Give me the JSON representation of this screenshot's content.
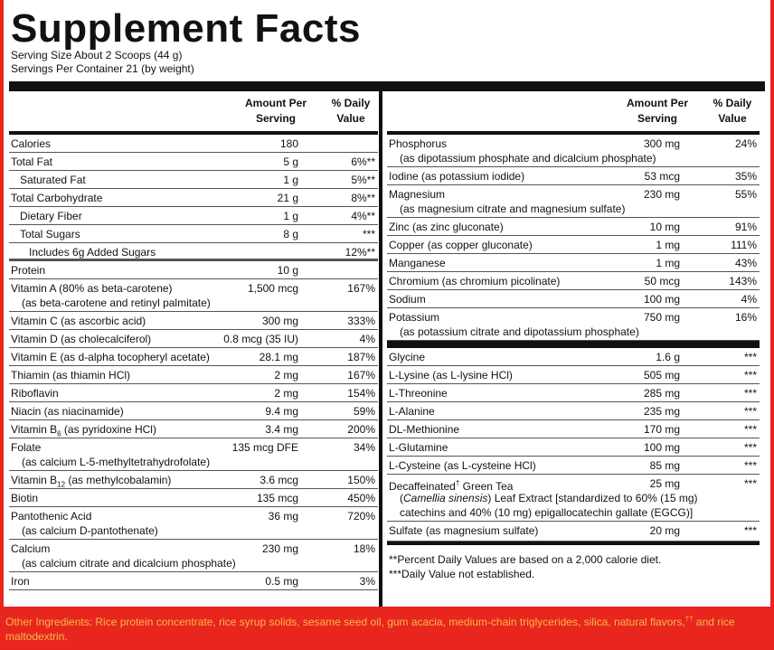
{
  "title": "Supplement Facts",
  "serving_size": "Serving Size About 2 Scoops (44 g)",
  "servings_per_container": "Servings Per Container 21 (by weight)",
  "header": {
    "amount_line1": "Amount Per",
    "amount_line2": "Serving",
    "dv_line1": "% Daily",
    "dv_line2": "Value"
  },
  "left_rows": [
    {
      "name": "Calories",
      "amount": "180",
      "dv": ""
    },
    {
      "name": "Total Fat",
      "amount": "5 g",
      "dv": "6%**"
    },
    {
      "name": "Saturated Fat",
      "amount": "1 g",
      "dv": "5%**"
    },
    {
      "name": "Total Carbohydrate",
      "amount": "21 g",
      "dv": "8%**"
    },
    {
      "name": "Dietary Fiber",
      "amount": "1 g",
      "dv": "4%**"
    },
    {
      "name": "Total Sugars",
      "amount": "8 g",
      "dv": "***"
    },
    {
      "name": "Includes 6g Added Sugars",
      "amount": "",
      "dv": "12%**"
    },
    {
      "name": "Protein",
      "amount": "10 g",
      "dv": ""
    },
    {
      "name": "Vitamin A (80% as beta-carotene)",
      "sub": "(as beta-carotene and retinyl palmitate)",
      "amount": "1,500 mcg",
      "dv": "167%"
    },
    {
      "name": "Vitamin C (as ascorbic acid)",
      "amount": "300 mg",
      "dv": "333%"
    },
    {
      "name": "Vitamin D (as cholecalciferol)",
      "amount": "0.8 mcg (35 IU)",
      "dv": "4%"
    },
    {
      "name": "Vitamin E (as d-alpha tocopheryl acetate)",
      "amount": "28.1 mg",
      "dv": "187%"
    },
    {
      "name": "Thiamin (as thiamin HCl)",
      "amount": "2 mg",
      "dv": "167%"
    },
    {
      "name": "Riboflavin",
      "amount": "2 mg",
      "dv": "154%"
    },
    {
      "name": "Niacin (as niacinamide)",
      "amount": "9.4 mg",
      "dv": "59%"
    },
    {
      "name_pre": "Vitamin B",
      "name_sub": "6",
      "name_post": " (as pyridoxine HCl)",
      "amount": "3.4 mg",
      "dv": "200%"
    },
    {
      "name": "Folate",
      "sub": "(as calcium L-5-methyltetrahydrofolate)",
      "amount": "135 mcg DFE",
      "dv": "34%"
    },
    {
      "name_pre": "Vitamin B",
      "name_sub": "12",
      "name_post": " (as methylcobalamin)",
      "amount": "3.6 mcg",
      "dv": "150%"
    },
    {
      "name": "Biotin",
      "amount": "135 mcg",
      "dv": "450%"
    },
    {
      "name": "Pantothenic Acid",
      "sub": "(as calcium D-pantothenate)",
      "amount": "36 mg",
      "dv": "720%"
    },
    {
      "name": "Calcium",
      "sub": "(as calcium citrate and dicalcium phosphate)",
      "amount": "230 mg",
      "dv": "18%"
    },
    {
      "name": "Iron",
      "amount": "0.5 mg",
      "dv": "3%"
    }
  ],
  "right_rows": [
    {
      "name": "Phosphorus",
      "sub": "(as dipotassium phosphate and dicalcium phosphate)",
      "amount": "300 mg",
      "dv": "24%"
    },
    {
      "name": "Iodine (as potassium iodide)",
      "amount": "53 mcg",
      "dv": "35%"
    },
    {
      "name": "Magnesium",
      "sub": "(as magnesium citrate and magnesium sulfate)",
      "amount": "230 mg",
      "dv": "55%"
    },
    {
      "name": "Zinc (as zinc gluconate)",
      "amount": "10 mg",
      "dv": "91%"
    },
    {
      "name": "Copper (as copper gluconate)",
      "amount": "1 mg",
      "dv": "111%"
    },
    {
      "name": "Manganese",
      "amount": "1 mg",
      "dv": "43%"
    },
    {
      "name": "Chromium (as chromium picolinate)",
      "amount": "50 mcg",
      "dv": "143%"
    },
    {
      "name": "Sodium",
      "amount": "100 mg",
      "dv": "4%"
    },
    {
      "name": "Potassium",
      "sub": "(as potassium citrate and dipotassium phosphate)",
      "amount": "750 mg",
      "dv": "16%"
    }
  ],
  "right_rows_2": [
    {
      "name": "Glycine",
      "amount": "1.6 g",
      "dv": "***"
    },
    {
      "name": "L-Lysine (as L-lysine HCl)",
      "amount": "505 mg",
      "dv": "***"
    },
    {
      "name": "L-Threonine",
      "amount": "285 mg",
      "dv": "***"
    },
    {
      "name": "L-Alanine",
      "amount": "235 mg",
      "dv": "***"
    },
    {
      "name": "DL-Methionine",
      "amount": "170 mg",
      "dv": "***"
    },
    {
      "name": "L-Glutamine",
      "amount": "100 mg",
      "dv": "***"
    },
    {
      "name": "L-Cysteine (as L-cysteine HCl)",
      "amount": "85 mg",
      "dv": "***"
    }
  ],
  "green_tea": {
    "name_pre": "Decaffeinated",
    "dagger": "†",
    "name_post": " Green Tea",
    "sub_italic": "Camellia sinensis",
    "sub_rest": ") Leaf Extract [standardized to 60% (15 mg)",
    "sub_open": "(",
    "sub2": "catechins and 40% (10 mg) epigallocatechin gallate (EGCG)]",
    "amount": "25 mg",
    "dv": "***"
  },
  "sulfate": {
    "name": "Sulfate (as magnesium sulfate)",
    "amount": "20 mg",
    "dv": "***"
  },
  "footnote1": "**Percent Daily Values are based on a 2,000 calorie diet.",
  "footnote2": "***Daily Value not established.",
  "other_ingredients": "Other Ingredients: Rice protein concentrate, rice syrup solids, sesame seed oil, gum acacia, medium-chain triglycerides, silica, natural flavors,",
  "other_dagger": "††",
  "other_ingredients_end": " and rice maltodextrin.",
  "colors": {
    "border": "#e8261e",
    "text": "#111111",
    "other_text": "#f3b94a"
  }
}
